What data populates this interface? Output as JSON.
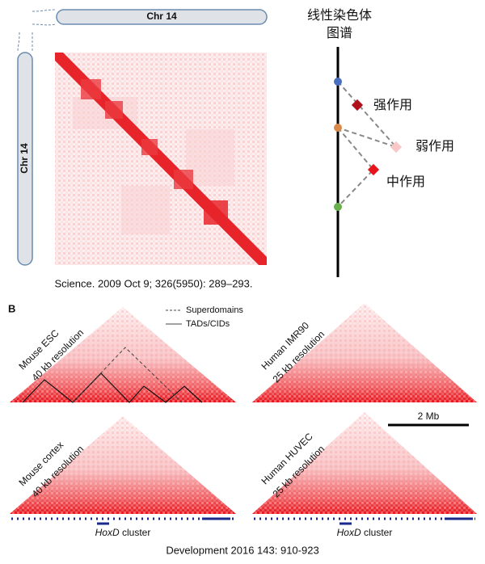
{
  "panel_a": {
    "chromosome_top": "Chr 14",
    "chromosome_left": "Chr 14",
    "citation": "Science. 2009 Oct 9; 326(5950): 289–293."
  },
  "schematic": {
    "title_lines": [
      "线性染色体",
      "图谱"
    ],
    "labels": [
      "强作用",
      "弱作用",
      "中作用"
    ]
  },
  "panel_b": {
    "label": "B",
    "legend": [
      "Superdomains",
      "TADs/CIDs"
    ],
    "scale_bar": "2 Mb",
    "maps": [
      {
        "name": "Mouse ESC",
        "resolution": "40 kb resolution"
      },
      {
        "name": "Human IMR90",
        "resolution": "25 kb resolution"
      },
      {
        "name": "Mouse cortex",
        "resolution": "40 kb resolution"
      },
      {
        "name": "Human HUVEC",
        "resolution": "25 kb resolution"
      }
    ],
    "gene": "HoxD",
    "gene_suffix": "cluster",
    "citation": "Development 2016 143: 910-923"
  }
}
